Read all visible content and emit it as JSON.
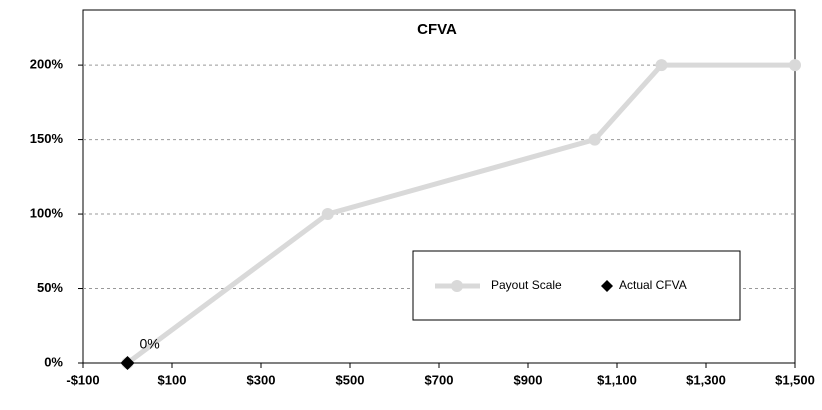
{
  "chart_data": {
    "type": "line",
    "title": "CFVA",
    "series": [
      {
        "name": "Payout Scale",
        "color": "#d9d9d9",
        "marker": "circle",
        "x": [
          0,
          450,
          1050,
          1200,
          1500
        ],
        "values": [
          0,
          100,
          150,
          200,
          200
        ]
      },
      {
        "name": "Actual CFVA",
        "color": "#000000",
        "marker": "diamond",
        "x": [
          0
        ],
        "values": [
          0
        ],
        "value_labels": [
          "0%"
        ]
      }
    ],
    "xlim": [
      -100,
      1500
    ],
    "xticks": [
      {
        "value": -100,
        "label": "-$100"
      },
      {
        "value": 100,
        "label": "$100"
      },
      {
        "value": 300,
        "label": "$300"
      },
      {
        "value": 500,
        "label": "$500"
      },
      {
        "value": 700,
        "label": "$700"
      },
      {
        "value": 900,
        "label": "$900"
      },
      {
        "value": 1100,
        "label": "$1,100"
      },
      {
        "value": 1300,
        "label": "$1,300"
      },
      {
        "value": 1500,
        "label": "$1,500"
      }
    ],
    "ylim": [
      0,
      237
    ],
    "yticks": [
      {
        "value": 0,
        "label": "0%"
      },
      {
        "value": 50,
        "label": "50%"
      },
      {
        "value": 100,
        "label": "100%"
      },
      {
        "value": 150,
        "label": "150%"
      },
      {
        "value": 200,
        "label": "200%"
      }
    ],
    "grid": true,
    "legend": "lower right"
  }
}
